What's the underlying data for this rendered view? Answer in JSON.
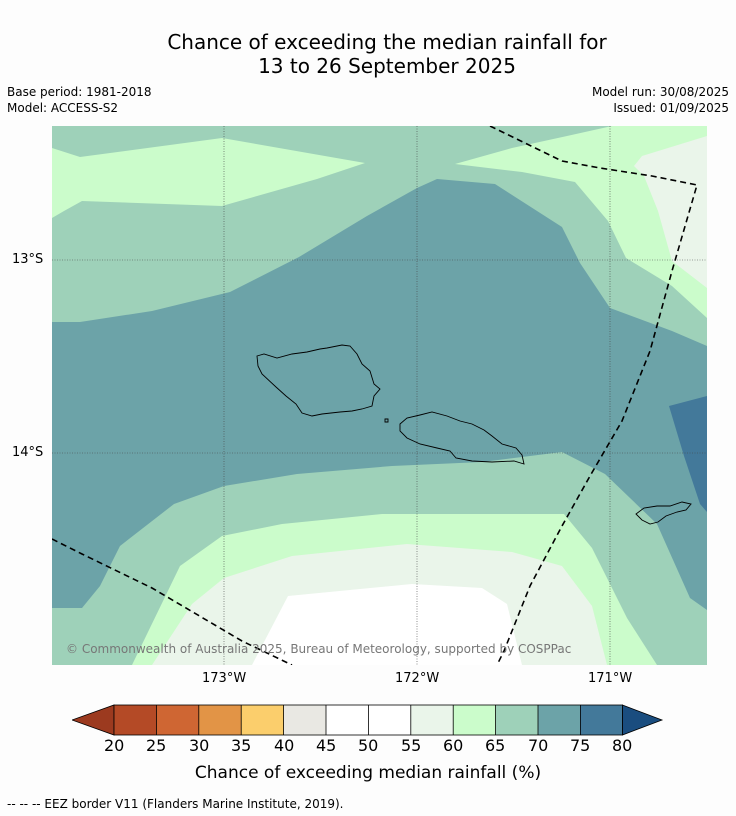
{
  "title": {
    "line1": "Chance of exceeding the median rainfall for",
    "line2": "13 to 26 September 2025"
  },
  "meta_left": {
    "base_period": "Base period: 1981-2018",
    "model": "Model: ACCESS-S2"
  },
  "meta_right": {
    "model_run": "Model run: 30/08/2025",
    "issued": "Issued: 01/09/2025"
  },
  "map": {
    "lat_ticks": [
      "13°S",
      "14°S"
    ],
    "lon_ticks": [
      "173°W",
      "172°W",
      "171°W"
    ],
    "copyright": "© Commonwealth of Australia 2025, Bureau of Meteorology, supported by COSPPac"
  },
  "colorbar": {
    "ticks": [
      "20",
      "25",
      "30",
      "35",
      "40",
      "45",
      "50",
      "55",
      "60",
      "65",
      "70",
      "75",
      "80"
    ],
    "colors": {
      "below_20": "#9c3a1f",
      "20_25": "#b44a26",
      "25_30": "#cf6633",
      "30_35": "#e29446",
      "35_40": "#fbce6c",
      "40_45": "#e9e8e3",
      "45_50": "#ffffff",
      "50_55": "#ffffff",
      "55_60": "#eaf5ea",
      "60_65": "#cbfccb",
      "65_70": "#9ed1b9",
      "70_75": "#6ca3a8",
      "75_80": "#43799a",
      "above_80": "#1a4d7f"
    },
    "label": "Chance of exceeding median rainfall (%)"
  },
  "footnote": "--  --  -- EEZ border V11 (Flanders Marine Institute, 2019)."
}
